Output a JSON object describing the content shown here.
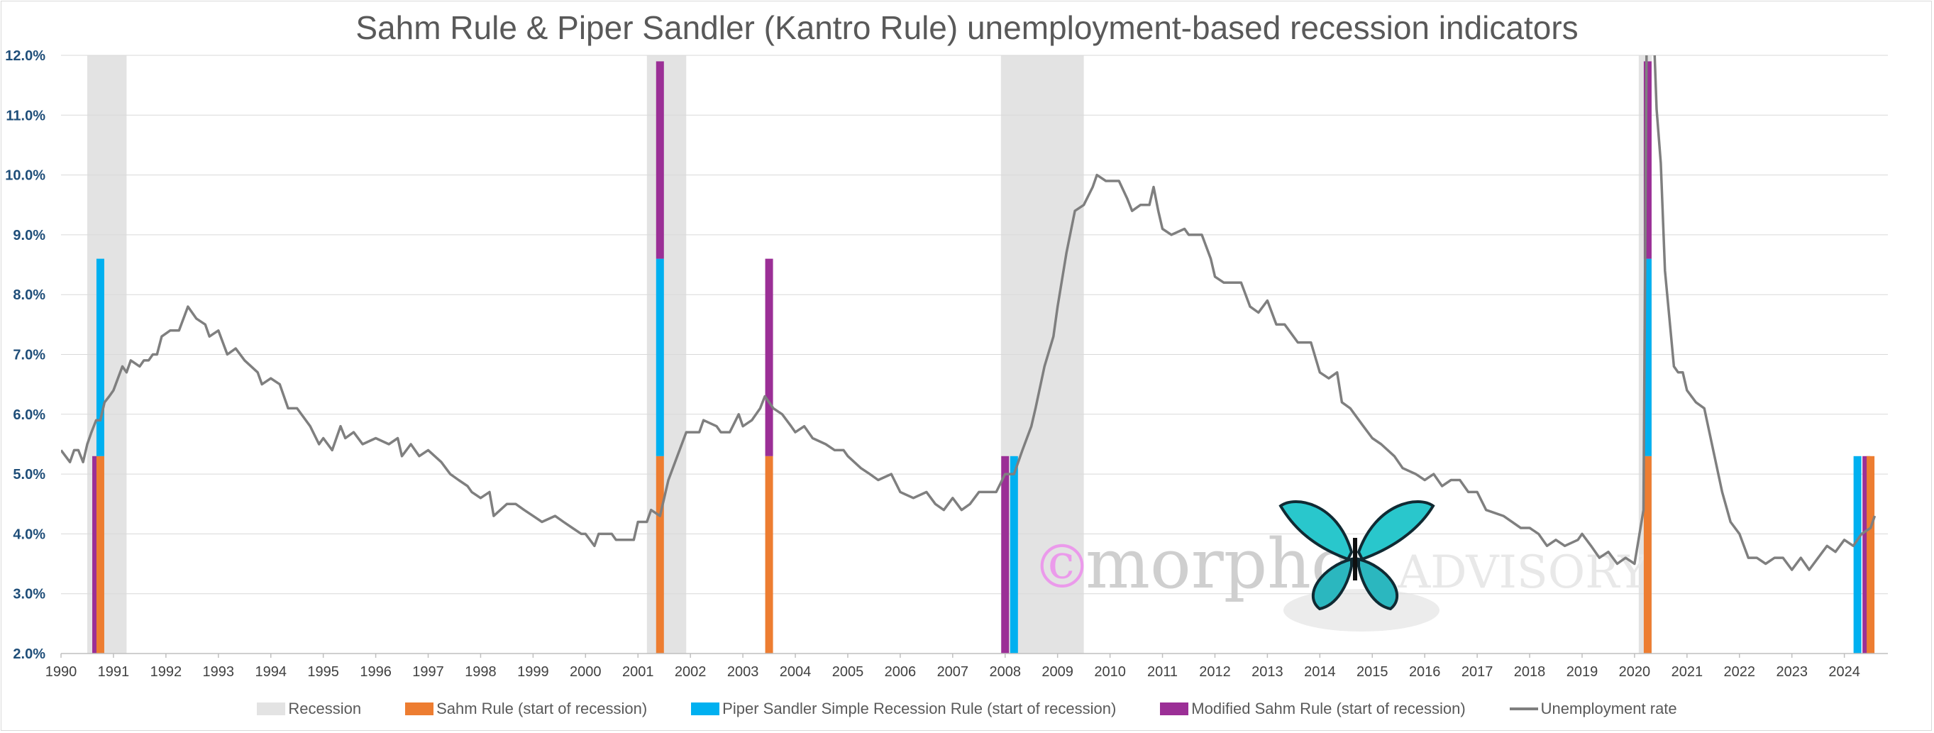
{
  "chart_data": {
    "type": "line",
    "title": "Sahm Rule & Piper Sandler (Kantro Rule) unemployment-based recession indicators",
    "xlabel": "",
    "ylabel": "",
    "xlim": [
      1990,
      2024.83
    ],
    "ylim": [
      2.0,
      12.0
    ],
    "x_ticks": [
      "1990",
      "1991",
      "1992",
      "1993",
      "1994",
      "1995",
      "1996",
      "1997",
      "1998",
      "1999",
      "2000",
      "2001",
      "2002",
      "2003",
      "2004",
      "2005",
      "2006",
      "2007",
      "2008",
      "2009",
      "2010",
      "2011",
      "2012",
      "2013",
      "2014",
      "2015",
      "2016",
      "2017",
      "2018",
      "2019",
      "2020",
      "2021",
      "2022",
      "2023",
      "2024"
    ],
    "y_ticks": [
      "2.0%",
      "3.0%",
      "4.0%",
      "5.0%",
      "6.0%",
      "7.0%",
      "8.0%",
      "9.0%",
      "10.0%",
      "11.0%",
      "12.0%"
    ],
    "grid": "horizontal",
    "legend_position": "bottom",
    "colors": {
      "recession": "#e3e3e3",
      "sahm": "#ed7d31",
      "piper": "#00b0f0",
      "modified_sahm": "#9b2f96",
      "unemployment": "#7f7f7f"
    },
    "legend": [
      {
        "key": "recession",
        "label": "Recession"
      },
      {
        "key": "sahm",
        "label": "Sahm Rule (start of recession)"
      },
      {
        "key": "piper",
        "label": "Piper Sandler Simple Recession Rule (start of recession)"
      },
      {
        "key": "modified_sahm",
        "label": "Modified Sahm Rule (start of recession)"
      },
      {
        "key": "unemployment",
        "label": "Unemployment rate"
      }
    ],
    "recessions": [
      {
        "start": 1990.5,
        "end": 1991.25
      },
      {
        "start": 2001.17,
        "end": 2001.92
      },
      {
        "start": 2007.92,
        "end": 2009.5
      },
      {
        "start": 2020.08,
        "end": 2020.33
      }
    ],
    "signals": [
      {
        "x": 1990.67,
        "bars": [
          {
            "series": "modified_sahm",
            "from": 2.0,
            "to": 5.3
          }
        ]
      },
      {
        "x": 1990.75,
        "bars": [
          {
            "series": "sahm",
            "from": 2.0,
            "to": 5.3
          },
          {
            "series": "piper",
            "from": 5.3,
            "to": 8.6
          }
        ]
      },
      {
        "x": 2001.42,
        "bars": [
          {
            "series": "sahm",
            "from": 2.0,
            "to": 5.3
          },
          {
            "series": "piper",
            "from": 5.3,
            "to": 8.6
          },
          {
            "series": "modified_sahm",
            "from": 8.6,
            "to": 11.9
          }
        ]
      },
      {
        "x": 2003.5,
        "bars": [
          {
            "series": "sahm",
            "from": 2.0,
            "to": 5.3
          },
          {
            "series": "modified_sahm",
            "from": 5.3,
            "to": 8.6
          }
        ]
      },
      {
        "x": 2008.0,
        "bars": [
          {
            "series": "modified_sahm",
            "from": 2.0,
            "to": 5.3
          }
        ]
      },
      {
        "x": 2008.17,
        "bars": [
          {
            "series": "piper",
            "from": 2.0,
            "to": 5.3
          }
        ]
      },
      {
        "x": 2020.25,
        "bars": [
          {
            "series": "sahm",
            "from": 2.0,
            "to": 5.3
          },
          {
            "series": "piper",
            "from": 5.3,
            "to": 8.6
          },
          {
            "series": "modified_sahm",
            "from": 8.6,
            "to": 11.9
          }
        ]
      },
      {
        "x": 2024.25,
        "bars": [
          {
            "series": "piper",
            "from": 2.0,
            "to": 5.3
          }
        ]
      },
      {
        "x": 2024.42,
        "bars": [
          {
            "series": "modified_sahm",
            "from": 2.0,
            "to": 5.3
          }
        ]
      },
      {
        "x": 2024.5,
        "bars": [
          {
            "series": "sahm",
            "from": 2.0,
            "to": 5.3
          }
        ]
      }
    ],
    "series": [
      {
        "name": "Unemployment rate",
        "points": [
          [
            1990.0,
            5.4
          ],
          [
            1990.17,
            5.2
          ],
          [
            1990.25,
            5.4
          ],
          [
            1990.33,
            5.4
          ],
          [
            1990.42,
            5.2
          ],
          [
            1990.5,
            5.5
          ],
          [
            1990.58,
            5.7
          ],
          [
            1990.67,
            5.9
          ],
          [
            1990.75,
            5.9
          ],
          [
            1990.83,
            6.2
          ],
          [
            1990.92,
            6.3
          ],
          [
            1991.0,
            6.4
          ],
          [
            1991.17,
            6.8
          ],
          [
            1991.25,
            6.7
          ],
          [
            1991.33,
            6.9
          ],
          [
            1991.5,
            6.8
          ],
          [
            1991.58,
            6.9
          ],
          [
            1991.67,
            6.9
          ],
          [
            1991.75,
            7.0
          ],
          [
            1991.83,
            7.0
          ],
          [
            1991.92,
            7.3
          ],
          [
            1992.08,
            7.4
          ],
          [
            1992.25,
            7.4
          ],
          [
            1992.42,
            7.8
          ],
          [
            1992.58,
            7.6
          ],
          [
            1992.75,
            7.5
          ],
          [
            1992.83,
            7.3
          ],
          [
            1993.0,
            7.4
          ],
          [
            1993.17,
            7.0
          ],
          [
            1993.33,
            7.1
          ],
          [
            1993.5,
            6.9
          ],
          [
            1993.75,
            6.7
          ],
          [
            1993.83,
            6.5
          ],
          [
            1994.0,
            6.6
          ],
          [
            1994.17,
            6.5
          ],
          [
            1994.33,
            6.1
          ],
          [
            1994.5,
            6.1
          ],
          [
            1994.75,
            5.8
          ],
          [
            1994.92,
            5.5
          ],
          [
            1995.0,
            5.6
          ],
          [
            1995.17,
            5.4
          ],
          [
            1995.33,
            5.8
          ],
          [
            1995.42,
            5.6
          ],
          [
            1995.58,
            5.7
          ],
          [
            1995.75,
            5.5
          ],
          [
            1996.0,
            5.6
          ],
          [
            1996.25,
            5.5
          ],
          [
            1996.42,
            5.6
          ],
          [
            1996.5,
            5.3
          ],
          [
            1996.67,
            5.5
          ],
          [
            1996.83,
            5.3
          ],
          [
            1997.0,
            5.4
          ],
          [
            1997.25,
            5.2
          ],
          [
            1997.42,
            5.0
          ],
          [
            1997.58,
            4.9
          ],
          [
            1997.75,
            4.8
          ],
          [
            1997.83,
            4.7
          ],
          [
            1998.0,
            4.6
          ],
          [
            1998.17,
            4.7
          ],
          [
            1998.25,
            4.3
          ],
          [
            1998.5,
            4.5
          ],
          [
            1998.67,
            4.5
          ],
          [
            1998.83,
            4.4
          ],
          [
            1999.0,
            4.3
          ],
          [
            1999.17,
            4.2
          ],
          [
            1999.42,
            4.3
          ],
          [
            1999.58,
            4.2
          ],
          [
            1999.75,
            4.1
          ],
          [
            1999.92,
            4.0
          ],
          [
            2000.0,
            4.0
          ],
          [
            2000.17,
            3.8
          ],
          [
            2000.25,
            4.0
          ],
          [
            2000.5,
            4.0
          ],
          [
            2000.58,
            3.9
          ],
          [
            2000.92,
            3.9
          ],
          [
            2001.0,
            4.2
          ],
          [
            2001.17,
            4.2
          ],
          [
            2001.25,
            4.4
          ],
          [
            2001.42,
            4.3
          ],
          [
            2001.58,
            4.9
          ],
          [
            2001.75,
            5.3
          ],
          [
            2001.92,
            5.7
          ],
          [
            2002.17,
            5.7
          ],
          [
            2002.25,
            5.9
          ],
          [
            2002.5,
            5.8
          ],
          [
            2002.58,
            5.7
          ],
          [
            2002.75,
            5.7
          ],
          [
            2002.92,
            6.0
          ],
          [
            2003.0,
            5.8
          ],
          [
            2003.17,
            5.9
          ],
          [
            2003.33,
            6.1
          ],
          [
            2003.42,
            6.3
          ],
          [
            2003.58,
            6.1
          ],
          [
            2003.75,
            6.0
          ],
          [
            2003.92,
            5.8
          ],
          [
            2004.0,
            5.7
          ],
          [
            2004.17,
            5.8
          ],
          [
            2004.33,
            5.6
          ],
          [
            2004.58,
            5.5
          ],
          [
            2004.75,
            5.4
          ],
          [
            2004.92,
            5.4
          ],
          [
            2005.0,
            5.3
          ],
          [
            2005.25,
            5.1
          ],
          [
            2005.42,
            5.0
          ],
          [
            2005.58,
            4.9
          ],
          [
            2005.83,
            5.0
          ],
          [
            2006.0,
            4.7
          ],
          [
            2006.25,
            4.6
          ],
          [
            2006.5,
            4.7
          ],
          [
            2006.67,
            4.5
          ],
          [
            2006.83,
            4.4
          ],
          [
            2007.0,
            4.6
          ],
          [
            2007.17,
            4.4
          ],
          [
            2007.33,
            4.5
          ],
          [
            2007.5,
            4.7
          ],
          [
            2007.67,
            4.7
          ],
          [
            2007.83,
            4.7
          ],
          [
            2008.0,
            5.0
          ],
          [
            2008.17,
            5.0
          ],
          [
            2008.33,
            5.4
          ],
          [
            2008.5,
            5.8
          ],
          [
            2008.58,
            6.1
          ],
          [
            2008.75,
            6.8
          ],
          [
            2008.92,
            7.3
          ],
          [
            2009.0,
            7.8
          ],
          [
            2009.17,
            8.7
          ],
          [
            2009.33,
            9.4
          ],
          [
            2009.5,
            9.5
          ],
          [
            2009.67,
            9.8
          ],
          [
            2009.75,
            10.0
          ],
          [
            2009.92,
            9.9
          ],
          [
            2010.17,
            9.9
          ],
          [
            2010.33,
            9.6
          ],
          [
            2010.42,
            9.4
          ],
          [
            2010.58,
            9.5
          ],
          [
            2010.75,
            9.5
          ],
          [
            2010.83,
            9.8
          ],
          [
            2010.92,
            9.4
          ],
          [
            2011.0,
            9.1
          ],
          [
            2011.17,
            9.0
          ],
          [
            2011.42,
            9.1
          ],
          [
            2011.5,
            9.0
          ],
          [
            2011.75,
            9.0
          ],
          [
            2011.92,
            8.6
          ],
          [
            2012.0,
            8.3
          ],
          [
            2012.17,
            8.2
          ],
          [
            2012.5,
            8.2
          ],
          [
            2012.67,
            7.8
          ],
          [
            2012.83,
            7.7
          ],
          [
            2013.0,
            7.9
          ],
          [
            2013.17,
            7.5
          ],
          [
            2013.33,
            7.5
          ],
          [
            2013.58,
            7.2
          ],
          [
            2013.83,
            7.2
          ],
          [
            2014.0,
            6.7
          ],
          [
            2014.17,
            6.6
          ],
          [
            2014.33,
            6.7
          ],
          [
            2014.42,
            6.2
          ],
          [
            2014.58,
            6.1
          ],
          [
            2014.83,
            5.8
          ],
          [
            2015.0,
            5.6
          ],
          [
            2015.17,
            5.5
          ],
          [
            2015.42,
            5.3
          ],
          [
            2015.58,
            5.1
          ],
          [
            2015.83,
            5.0
          ],
          [
            2016.0,
            4.9
          ],
          [
            2016.17,
            5.0
          ],
          [
            2016.33,
            4.8
          ],
          [
            2016.5,
            4.9
          ],
          [
            2016.67,
            4.9
          ],
          [
            2016.83,
            4.7
          ],
          [
            2017.0,
            4.7
          ],
          [
            2017.17,
            4.4
          ],
          [
            2017.5,
            4.3
          ],
          [
            2017.83,
            4.1
          ],
          [
            2018.0,
            4.1
          ],
          [
            2018.17,
            4.0
          ],
          [
            2018.33,
            3.8
          ],
          [
            2018.5,
            3.9
          ],
          [
            2018.67,
            3.8
          ],
          [
            2018.92,
            3.9
          ],
          [
            2019.0,
            4.0
          ],
          [
            2019.17,
            3.8
          ],
          [
            2019.33,
            3.6
          ],
          [
            2019.5,
            3.7
          ],
          [
            2019.67,
            3.5
          ],
          [
            2019.83,
            3.6
          ],
          [
            2020.0,
            3.5
          ],
          [
            2020.17,
            4.4
          ],
          [
            2020.25,
            14.8
          ],
          [
            2020.33,
            13.3
          ],
          [
            2020.42,
            11.1
          ],
          [
            2020.5,
            10.2
          ],
          [
            2020.58,
            8.4
          ],
          [
            2020.75,
            6.8
          ],
          [
            2020.83,
            6.7
          ],
          [
            2020.92,
            6.7
          ],
          [
            2021.0,
            6.4
          ],
          [
            2021.17,
            6.2
          ],
          [
            2021.33,
            6.1
          ],
          [
            2021.5,
            5.4
          ],
          [
            2021.67,
            4.7
          ],
          [
            2021.83,
            4.2
          ],
          [
            2022.0,
            4.0
          ],
          [
            2022.17,
            3.6
          ],
          [
            2022.33,
            3.6
          ],
          [
            2022.5,
            3.5
          ],
          [
            2022.67,
            3.6
          ],
          [
            2022.83,
            3.6
          ],
          [
            2023.0,
            3.4
          ],
          [
            2023.17,
            3.6
          ],
          [
            2023.33,
            3.4
          ],
          [
            2023.5,
            3.6
          ],
          [
            2023.67,
            3.8
          ],
          [
            2023.83,
            3.7
          ],
          [
            2024.0,
            3.9
          ],
          [
            2024.17,
            3.8
          ],
          [
            2024.33,
            4.0
          ],
          [
            2024.5,
            4.1
          ],
          [
            2024.58,
            4.3
          ]
        ]
      }
    ]
  },
  "watermark": {
    "copyright": "©",
    "text": "morpho",
    "brand": "ADVISORY"
  }
}
